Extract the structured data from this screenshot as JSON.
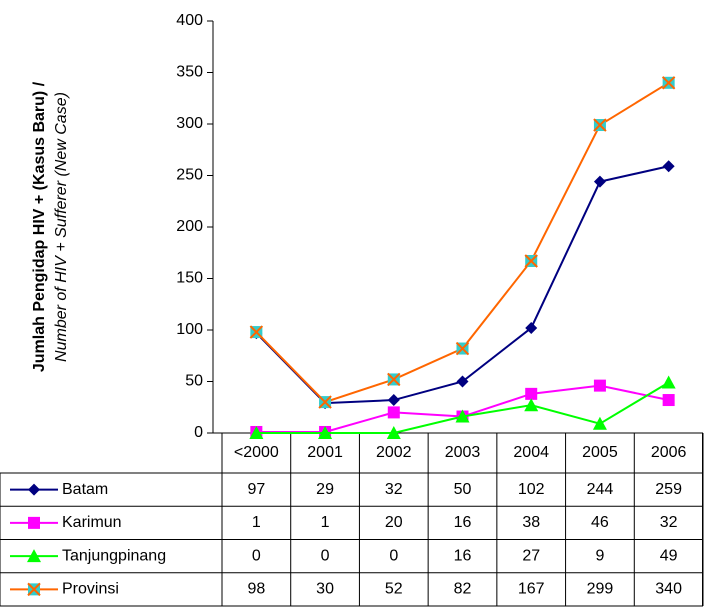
{
  "chart_data": {
    "type": "line",
    "y_label": "Jumlah Pengidap HIV + (Kasus Baru) /",
    "y_label_sub": "Number of HIV + Sufferer (New Case)",
    "categories": [
      "<2000",
      "2001",
      "2002",
      "2003",
      "2004",
      "2005",
      "2006"
    ],
    "series": [
      {
        "name": "Batam",
        "color": "#000080",
        "marker": "diamond",
        "values": [
          97,
          29,
          32,
          50,
          102,
          244,
          259
        ]
      },
      {
        "name": "Karimun",
        "color": "#ff00ff",
        "marker": "square",
        "values": [
          1,
          1,
          20,
          16,
          38,
          46,
          32
        ]
      },
      {
        "name": "Tanjungpinang",
        "color": "#00ff00",
        "marker": "triangle",
        "values": [
          0,
          0,
          0,
          16,
          27,
          9,
          49
        ]
      },
      {
        "name": "Provinsi",
        "color": "#ff6600",
        "marker": "xsquare",
        "values": [
          98,
          30,
          52,
          82,
          167,
          299,
          340
        ]
      }
    ],
    "ylim": [
      0,
      400
    ],
    "yticks": [
      0,
      50,
      100,
      150,
      200,
      250,
      300,
      350,
      400
    ],
    "grid": false
  }
}
